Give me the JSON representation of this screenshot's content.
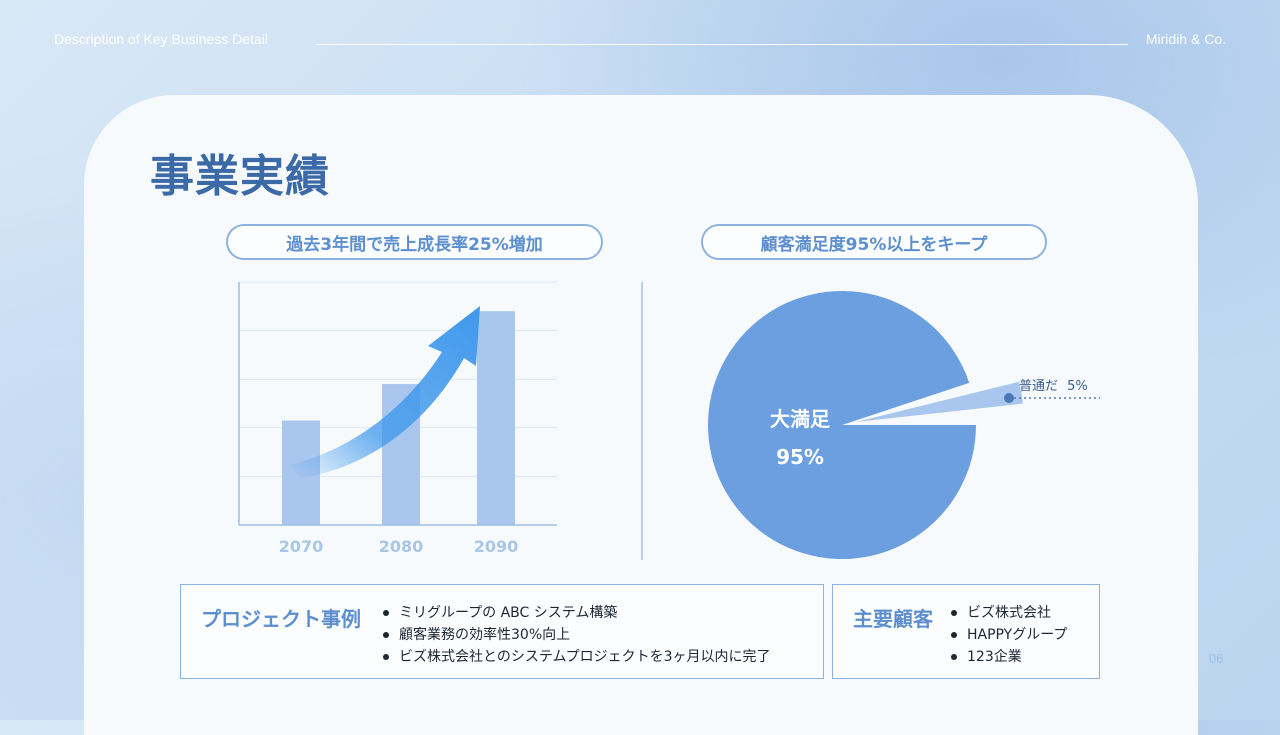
{
  "header": {
    "left": "Description of Key Business Detail",
    "right": "Miridih & Co."
  },
  "page_title": "事業実績",
  "sales": {
    "pill": "過去3年間で売上成長率25%増加"
  },
  "satisfaction": {
    "pill": "顧客満足度95%以上をキープ"
  },
  "chart_data": [
    {
      "type": "bar",
      "categories": [
        "2070",
        "2080",
        "2090"
      ],
      "values": [
        43,
        58,
        88
      ],
      "ylim": [
        0,
        100
      ],
      "grid": true,
      "colors": {
        "bar": "#a9c6ee",
        "arrow": "#3f98ec",
        "axis": "#9ebfe4",
        "tick": "#aac6e6"
      }
    },
    {
      "type": "pie",
      "slices": [
        {
          "label": "大満足",
          "value_label": "95%",
          "value": 95,
          "color": "#6b9fdf"
        },
        {
          "label": "普通だ",
          "value_label": "5%",
          "value": 5,
          "color": "#a9c6ee"
        }
      ]
    }
  ],
  "projects": {
    "title": "プロジェクト事例",
    "items": [
      "ミリグループの ABC システム構築",
      "顧客業務の効率性30%向上",
      "ビズ株式会社とのシステムプロジェクトを3ヶ月以内に完了"
    ]
  },
  "clients": {
    "title": "主要顧客",
    "items": [
      "ビズ株式会社",
      "HAPPYグループ",
      "123企業"
    ]
  },
  "page_number": "06"
}
